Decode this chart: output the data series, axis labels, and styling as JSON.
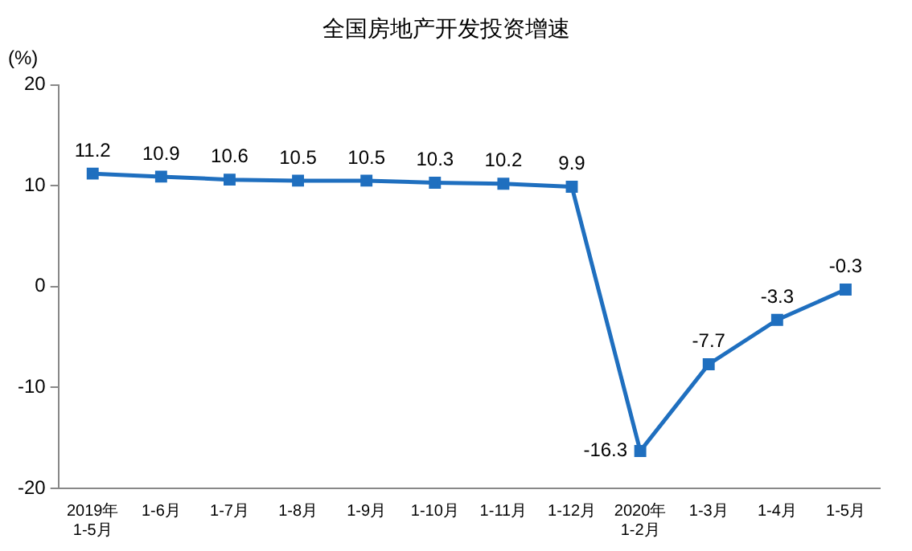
{
  "chart_data": {
    "type": "line",
    "title": "全国房地产开发投资增速",
    "ylabel": "(%)",
    "categories": [
      "2019年\n1-5月",
      "1-6月",
      "1-7月",
      "1-8月",
      "1-9月",
      "1-10月",
      "1-11月",
      "1-12月",
      "2020年\n1-2月",
      "1-3月",
      "1-4月",
      "1-5月"
    ],
    "values": [
      11.2,
      10.9,
      10.6,
      10.5,
      10.5,
      10.3,
      10.2,
      9.9,
      -16.3,
      -7.7,
      -3.3,
      -0.3
    ],
    "color": "#1f6fbf",
    "marker": "square",
    "line_style": "solid",
    "data_labels": true,
    "grid": false,
    "legend": false,
    "ylim": [
      -20,
      20
    ],
    "yticks": [
      -20,
      -10,
      0,
      10,
      20
    ]
  }
}
